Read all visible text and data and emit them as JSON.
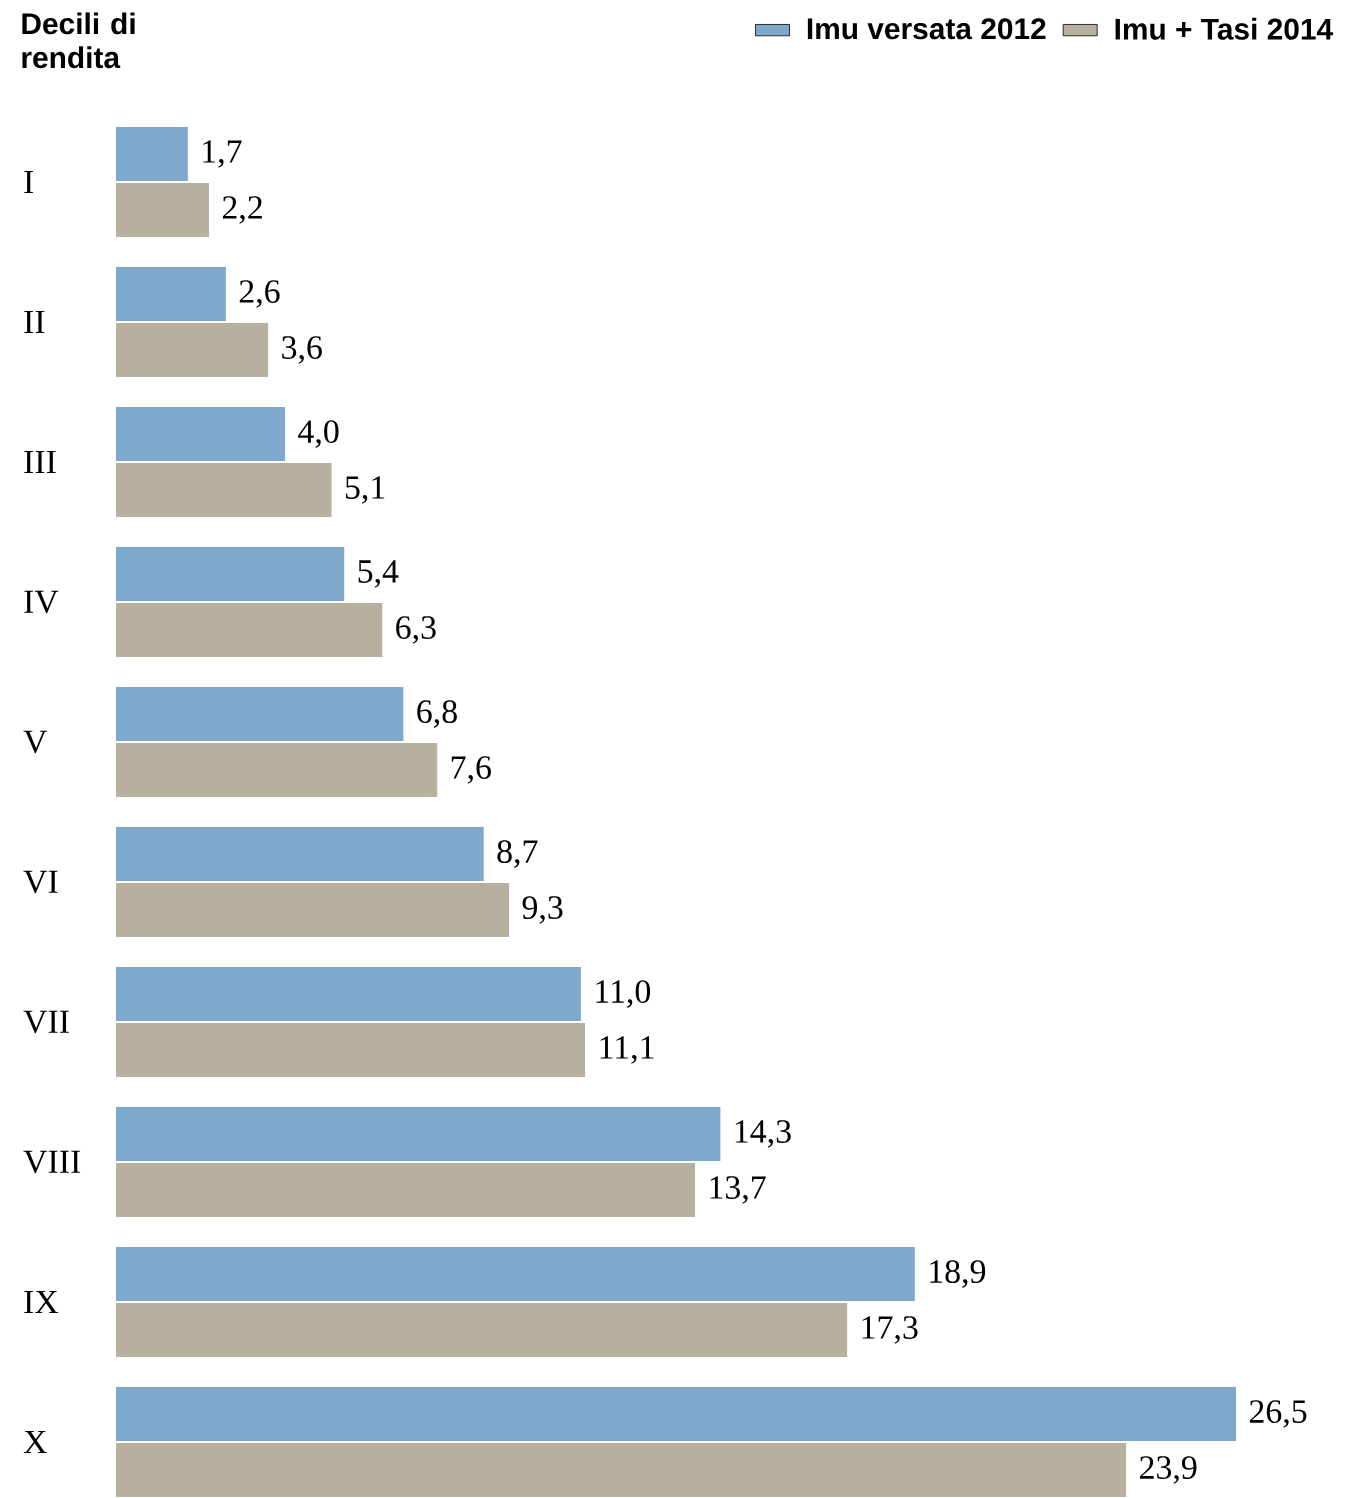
{
  "chart_data": {
    "type": "bar",
    "orientation": "horizontal",
    "ylabel": "Decili di rendita",
    "categories": [
      "I",
      "II",
      "III",
      "IV",
      "V",
      "VI",
      "VII",
      "VIII",
      "IX",
      "X"
    ],
    "series": [
      {
        "name": "Imu versata 2012",
        "color": "#7ea9cc",
        "values": [
          1.7,
          2.6,
          4.0,
          5.4,
          6.8,
          8.7,
          11.0,
          14.3,
          18.9,
          26.5
        ],
        "value_labels": [
          "1,7",
          "2,6",
          "4,0",
          "5,4",
          "6,8",
          "8,7",
          "11,0",
          "14,3",
          "18,9",
          "26,5"
        ]
      },
      {
        "name": "Imu + Tasi 2014",
        "color": "#b7b09f",
        "values": [
          2.2,
          3.6,
          5.1,
          6.3,
          7.6,
          9.3,
          11.1,
          13.7,
          17.3,
          23.9
        ],
        "value_labels": [
          "2,2",
          "3,6",
          "5,1",
          "6,3",
          "7,6",
          "9,3",
          "11,1",
          "13,7",
          "17,3",
          "23,9"
        ]
      }
    ],
    "xlim": [
      0,
      26.5
    ],
    "tick_labels": "y",
    "legend": "top right",
    "grid": false
  }
}
